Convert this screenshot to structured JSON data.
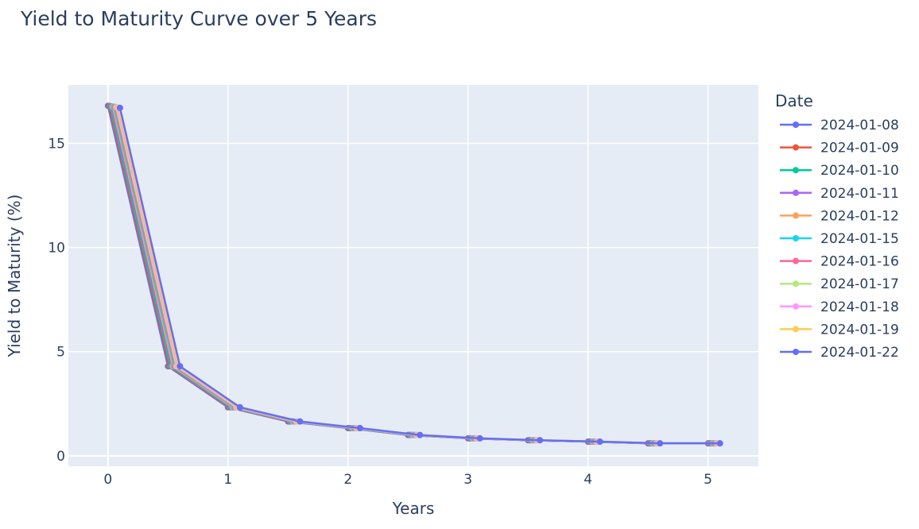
{
  "chart_data": {
    "type": "line",
    "title": "Yield to Maturity Curve over 5 Years",
    "xlabel": "Years",
    "ylabel": "Yield to Maturity (%)",
    "xlim": [
      -0.33,
      5.42
    ],
    "ylim": [
      -0.5,
      17.8
    ],
    "x_ticks": [
      0,
      1,
      2,
      3,
      4,
      5
    ],
    "y_ticks": [
      0,
      5,
      10,
      15
    ],
    "grid": true,
    "legend_title": "Date",
    "legend_position": "right",
    "series": [
      {
        "name": "2024-01-08",
        "color": "#636efa",
        "x": [
          0,
          0.5,
          1,
          1.5,
          2,
          2.5,
          3,
          3.5,
          4,
          4.5,
          5
        ],
        "y": [
          16.8,
          4.3,
          2.33,
          1.65,
          1.33,
          1.0,
          0.84,
          0.75,
          0.68,
          0.6,
          0.6
        ]
      },
      {
        "name": "2024-01-09",
        "color": "#EF553B",
        "x": [
          0.01,
          0.51,
          1.01,
          1.51,
          2.01,
          2.51,
          3.01,
          3.51,
          4.01,
          4.51,
          5.01
        ],
        "y": [
          16.79,
          4.3,
          2.33,
          1.65,
          1.33,
          1.0,
          0.84,
          0.75,
          0.68,
          0.6,
          0.6
        ]
      },
      {
        "name": "2024-01-10",
        "color": "#00cc96",
        "x": [
          0.02,
          0.52,
          1.02,
          1.52,
          2.02,
          2.52,
          3.02,
          3.52,
          4.02,
          4.52,
          5.02
        ],
        "y": [
          16.78,
          4.3,
          2.33,
          1.65,
          1.33,
          1.0,
          0.84,
          0.75,
          0.68,
          0.6,
          0.6
        ]
      },
      {
        "name": "2024-01-11",
        "color": "#ab63fa",
        "x": [
          0.03,
          0.53,
          1.03,
          1.53,
          2.03,
          2.53,
          3.03,
          3.53,
          4.03,
          4.53,
          5.03
        ],
        "y": [
          16.77,
          4.3,
          2.33,
          1.65,
          1.33,
          1.0,
          0.84,
          0.75,
          0.68,
          0.6,
          0.6
        ]
      },
      {
        "name": "2024-01-12",
        "color": "#FFA15A",
        "x": [
          0.04,
          0.54,
          1.04,
          1.54,
          2.04,
          2.54,
          3.04,
          3.54,
          4.04,
          4.54,
          5.04
        ],
        "y": [
          16.76,
          4.3,
          2.33,
          1.65,
          1.33,
          1.0,
          0.84,
          0.75,
          0.68,
          0.6,
          0.6
        ]
      },
      {
        "name": "2024-01-15",
        "color": "#19d3f3",
        "x": [
          0.05,
          0.55,
          1.05,
          1.55,
          2.05,
          2.55,
          3.05,
          3.55,
          4.05,
          4.55,
          5.05
        ],
        "y": [
          16.75,
          4.3,
          2.33,
          1.65,
          1.33,
          1.0,
          0.84,
          0.75,
          0.68,
          0.6,
          0.6
        ]
      },
      {
        "name": "2024-01-16",
        "color": "#FF6692",
        "x": [
          0.06,
          0.56,
          1.06,
          1.56,
          2.06,
          2.56,
          3.06,
          3.56,
          4.06,
          4.56,
          5.06
        ],
        "y": [
          16.74,
          4.3,
          2.33,
          1.65,
          1.33,
          1.0,
          0.84,
          0.75,
          0.68,
          0.6,
          0.6
        ]
      },
      {
        "name": "2024-01-17",
        "color": "#B6E880",
        "x": [
          0.07,
          0.57,
          1.07,
          1.57,
          2.07,
          2.57,
          3.07,
          3.57,
          4.07,
          4.57,
          5.07
        ],
        "y": [
          16.73,
          4.3,
          2.33,
          1.65,
          1.33,
          1.0,
          0.84,
          0.75,
          0.68,
          0.6,
          0.6
        ]
      },
      {
        "name": "2024-01-18",
        "color": "#FF97FF",
        "x": [
          0.08,
          0.58,
          1.08,
          1.58,
          2.08,
          2.58,
          3.08,
          3.58,
          4.08,
          4.58,
          5.08
        ],
        "y": [
          16.72,
          4.3,
          2.33,
          1.65,
          1.33,
          1.0,
          0.84,
          0.75,
          0.68,
          0.6,
          0.6
        ]
      },
      {
        "name": "2024-01-19",
        "color": "#FECB52",
        "x": [
          0.09,
          0.59,
          1.09,
          1.59,
          2.09,
          2.59,
          3.09,
          3.59,
          4.09,
          4.59,
          5.09
        ],
        "y": [
          16.71,
          4.3,
          2.33,
          1.65,
          1.33,
          1.0,
          0.84,
          0.75,
          0.68,
          0.6,
          0.6
        ]
      },
      {
        "name": "2024-01-22",
        "color": "#636efa",
        "x": [
          0.1,
          0.6,
          1.1,
          1.6,
          2.1,
          2.6,
          3.1,
          3.6,
          4.1,
          4.6,
          5.1
        ],
        "y": [
          16.7,
          4.3,
          2.33,
          1.65,
          1.33,
          1.0,
          0.84,
          0.75,
          0.68,
          0.6,
          0.6
        ]
      }
    ]
  }
}
